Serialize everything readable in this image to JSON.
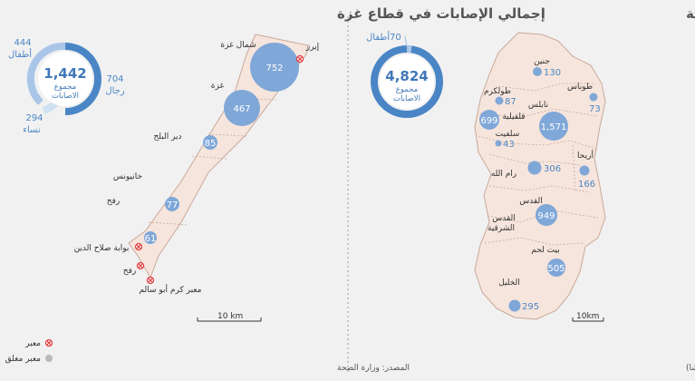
{
  "west_bank": {
    "title": "اجمالي الاصابات في الضفة الغربية",
    "source": "المصدر: مكتب تنسيق الشؤون الإنسانية (أوتشا)",
    "donut": {
      "total": "4,824",
      "label_line1": "مجموع",
      "label_line2": "الاصابات",
      "children_value": "70",
      "children_label": "أطفال"
    },
    "scale": "10km",
    "governorates": [
      {
        "name": "جنين",
        "value": "130"
      },
      {
        "name": "طوباس",
        "value": "73"
      },
      {
        "name": "طولكرم",
        "value": "87"
      },
      {
        "name": "نابلس",
        "value": "1,571"
      },
      {
        "name": "قلقيلية",
        "value": "699"
      },
      {
        "name": "سلفيت",
        "value": "43"
      },
      {
        "name": "أريحا",
        "value": "166"
      },
      {
        "name": "رام الله",
        "value": "306"
      },
      {
        "name": "القدس",
        "value": "949"
      },
      {
        "name": "القدس الشرقية",
        "value": ""
      },
      {
        "name": "بيت لحم",
        "value": "505"
      },
      {
        "name": "الخليل",
        "value": "295"
      }
    ]
  },
  "gaza": {
    "title": "إجمالي الإصابات في قطاع غزة",
    "source": "المصدر: وزارة الصحة",
    "donut": {
      "total": "1,442",
      "label_line1": "مجموع",
      "label_line2": "الاصابات",
      "segments": [
        {
          "label": "أطفال",
          "value": "444",
          "color": "#a9c6e8"
        },
        {
          "label": "رجال",
          "value": "704",
          "color": "#4a86c5"
        },
        {
          "label": "نساء",
          "value": "294",
          "color": "#cfe0f3"
        }
      ]
    },
    "scale": "10 km",
    "places": [
      {
        "name": "شمال غزة",
        "value": "752"
      },
      {
        "name": "غزة",
        "value": "467"
      },
      {
        "name": "دير البلح",
        "value": "85"
      },
      {
        "name": "خانيونس",
        "value": "77"
      },
      {
        "name": "رفح",
        "value": "61"
      }
    ],
    "crossings": [
      {
        "name": "إيرز"
      },
      {
        "name": "بوابة صلاح الدين"
      },
      {
        "name": "رفح"
      },
      {
        "name": "معبر كرم أبو سالم"
      }
    ],
    "legend": {
      "crossing": "معبر",
      "closed_crossing": "معبر مغلق"
    }
  },
  "colors": {
    "bubble": "#7fa7d8",
    "land": "#f6e5dc",
    "border": "#c9a89a",
    "donut_dark": "#4a86c5",
    "crossing": "#e0383b"
  }
}
